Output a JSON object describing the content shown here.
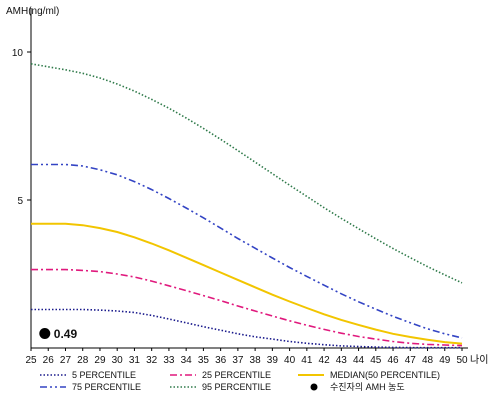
{
  "chart_data": {
    "type": "line",
    "ylabel": "AMH(ng/ml)",
    "xlabel": "나이",
    "x": [
      25,
      26,
      27,
      28,
      29,
      30,
      31,
      32,
      33,
      34,
      35,
      36,
      37,
      38,
      39,
      40,
      41,
      42,
      43,
      44,
      45,
      46,
      47,
      48,
      49,
      50
    ],
    "xlim": [
      25,
      50
    ],
    "ylim": [
      0,
      11
    ],
    "yticks": [
      5,
      10
    ],
    "grid": false,
    "legend_position": "bottom",
    "series": [
      {
        "name": "5 PERCENTILE",
        "color": "#1a1a8c",
        "dash": "dotted",
        "values": [
          1.3,
          1.3,
          1.3,
          1.3,
          1.28,
          1.25,
          1.2,
          1.1,
          0.98,
          0.85,
          0.72,
          0.6,
          0.48,
          0.38,
          0.3,
          0.22,
          0.16,
          0.11,
          0.07,
          0.05,
          0.03,
          0.02,
          0.015,
          0.01,
          0.01,
          0.01
        ]
      },
      {
        "name": "25 PERCENTILE",
        "color": "#e0197d",
        "dash": "dashdot",
        "values": [
          2.65,
          2.65,
          2.65,
          2.62,
          2.58,
          2.5,
          2.4,
          2.26,
          2.1,
          1.94,
          1.77,
          1.6,
          1.42,
          1.25,
          1.08,
          0.92,
          0.77,
          0.63,
          0.5,
          0.39,
          0.3,
          0.22,
          0.16,
          0.12,
          0.1,
          0.08
        ]
      },
      {
        "name": "MEDIAN(50 PERCENTILE)",
        "color": "#f2c500",
        "dash": "solid",
        "values": [
          4.2,
          4.2,
          4.2,
          4.15,
          4.05,
          3.92,
          3.74,
          3.53,
          3.3,
          3.05,
          2.8,
          2.55,
          2.3,
          2.05,
          1.8,
          1.57,
          1.35,
          1.14,
          0.95,
          0.78,
          0.62,
          0.48,
          0.37,
          0.28,
          0.2,
          0.15
        ]
      },
      {
        "name": "75 PERCENTILE",
        "color": "#3344c4",
        "dash": "dashdotdot",
        "values": [
          6.2,
          6.2,
          6.2,
          6.15,
          6.02,
          5.85,
          5.62,
          5.35,
          5.05,
          4.73,
          4.4,
          4.05,
          3.7,
          3.37,
          3.04,
          2.72,
          2.42,
          2.12,
          1.83,
          1.56,
          1.31,
          1.07,
          0.85,
          0.65,
          0.48,
          0.34
        ]
      },
      {
        "name": "95 PERCENTILE",
        "color": "#2f7a4a",
        "dash": "dotted",
        "values": [
          9.6,
          9.5,
          9.4,
          9.28,
          9.12,
          8.92,
          8.68,
          8.4,
          8.1,
          7.77,
          7.42,
          7.05,
          6.67,
          6.28,
          5.89,
          5.5,
          5.12,
          4.74,
          4.38,
          4.03,
          3.69,
          3.36,
          3.05,
          2.75,
          2.47,
          2.2
        ]
      }
    ],
    "point": {
      "name": "수진자의 AMH 농도",
      "x": 25.8,
      "y": 0.49,
      "label": "0.49",
      "color": "#000000"
    }
  }
}
